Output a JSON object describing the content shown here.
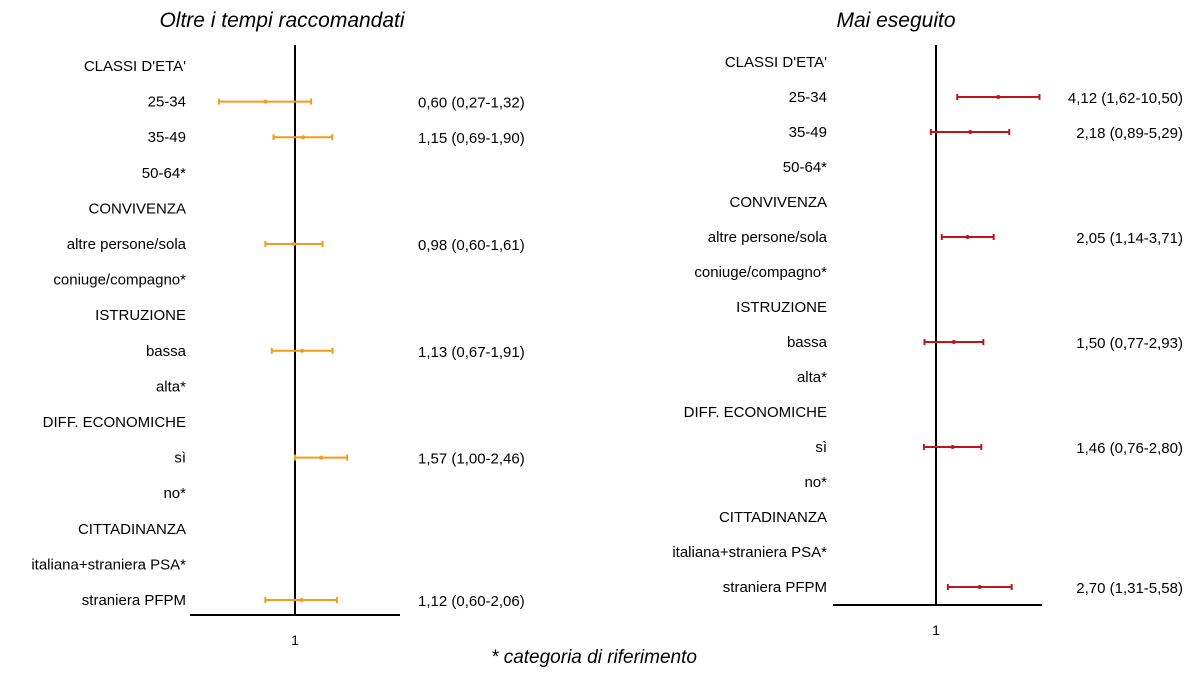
{
  "footnote": "* categoria di riferimento",
  "chart_data": [
    {
      "type": "forest",
      "title": "Oltre i tempi raccomandati",
      "series_color": "#f59b1a",
      "reference_value": 1,
      "x_tick_label": "1",
      "rows": [
        {
          "label": "CLASSI D'ETA'",
          "header": true
        },
        {
          "label": "25-34",
          "or": 0.6,
          "lo": 0.27,
          "hi": 1.32,
          "text": "0,60 (0,27-1,32)"
        },
        {
          "label": "35-49",
          "or": 1.15,
          "lo": 0.69,
          "hi": 1.9,
          "text": "1,15 (0,69-1,90)"
        },
        {
          "label": "50-64*"
        },
        {
          "label": "CONVIVENZA",
          "header": true
        },
        {
          "label": "altre persone/sola",
          "or": 0.98,
          "lo": 0.6,
          "hi": 1.61,
          "text": "0,98 (0,60-1,61)"
        },
        {
          "label": "coniuge/compagno*"
        },
        {
          "label": "ISTRUZIONE",
          "header": true
        },
        {
          "label": "bassa",
          "or": 1.13,
          "lo": 0.67,
          "hi": 1.91,
          "text": "1,13 (0,67-1,91)"
        },
        {
          "label": "alta*"
        },
        {
          "label": "DIFF. ECONOMICHE",
          "header": true
        },
        {
          "label": "sì",
          "or": 1.57,
          "lo": 1.0,
          "hi": 2.46,
          "text": "1,57 (1,00-2,46)"
        },
        {
          "label": "no*"
        },
        {
          "label": "CITTADINANZA",
          "header": true
        },
        {
          "label": "italiana+straniera PSA*"
        },
        {
          "label": "straniera PFPM",
          "or": 1.12,
          "lo": 0.6,
          "hi": 2.06,
          "text": "1,12 (0,60-2,06)"
        }
      ]
    },
    {
      "type": "forest",
      "title": "Mai eseguito",
      "series_color": "#c0141c",
      "reference_value": 1,
      "x_tick_label": "1",
      "rows": [
        {
          "label": "CLASSI D'ETA'",
          "header": true
        },
        {
          "label": "25-34",
          "or": 4.12,
          "lo": 1.62,
          "hi": 10.5,
          "text": "4,12 (1,62-10,50)"
        },
        {
          "label": "35-49",
          "or": 2.18,
          "lo": 0.89,
          "hi": 5.29,
          "text": "2,18 (0,89-5,29)"
        },
        {
          "label": "50-64*"
        },
        {
          "label": "CONVIVENZA",
          "header": true
        },
        {
          "label": "altre persone/sola",
          "or": 2.05,
          "lo": 1.14,
          "hi": 3.71,
          "text": "2,05 (1,14-3,71)"
        },
        {
          "label": "coniuge/compagno*"
        },
        {
          "label": "ISTRUZIONE",
          "header": true
        },
        {
          "label": "bassa",
          "or": 1.5,
          "lo": 0.77,
          "hi": 2.93,
          "text": "1,50 (0,77-2,93)"
        },
        {
          "label": "alta*"
        },
        {
          "label": "DIFF. ECONOMICHE",
          "header": true
        },
        {
          "label": "sì",
          "or": 1.46,
          "lo": 0.76,
          "hi": 2.8,
          "text": "1,46 (0,76-2,80)"
        },
        {
          "label": "no*"
        },
        {
          "label": "CITTADINANZA",
          "header": true
        },
        {
          "label": "italiana+straniera PSA*"
        },
        {
          "label": "straniera PFPM",
          "or": 2.7,
          "lo": 1.31,
          "hi": 5.58,
          "text": "2,70 (1,31-5,58)"
        }
      ]
    }
  ]
}
